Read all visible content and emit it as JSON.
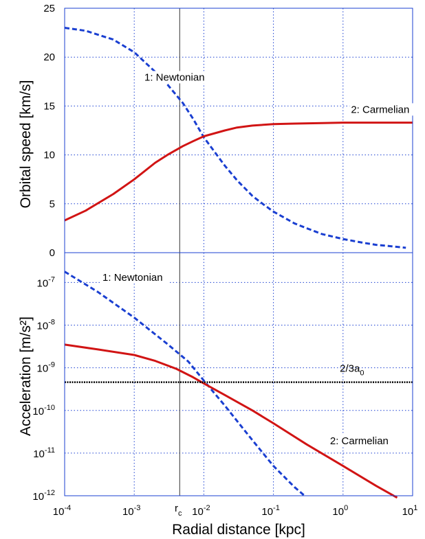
{
  "chart_data": [
    {
      "type": "line",
      "ylabel": "Orbital speed [km/s]",
      "xscale": "log",
      "xlim": [
        0.0001,
        10
      ],
      "ylim": [
        0,
        25
      ],
      "yticks": [
        "0",
        "5",
        "10",
        "15",
        "20",
        "25"
      ],
      "grid": true,
      "series": [
        {
          "name": "1: Newtonian",
          "style": "dashed",
          "color": "#1a3fd1",
          "x": [
            0.0001,
            0.0002,
            0.0005,
            0.001,
            0.002,
            0.003,
            0.005,
            0.007,
            0.01,
            0.02,
            0.03,
            0.05,
            0.07,
            0.1,
            0.2,
            0.3,
            0.5,
            1,
            2,
            3,
            5,
            8
          ],
          "y": [
            23,
            22.7,
            21.8,
            20.5,
            18.5,
            17.2,
            15.3,
            13.7,
            11.8,
            8.9,
            7.4,
            5.8,
            5.0,
            4.2,
            3.0,
            2.5,
            1.9,
            1.4,
            1.0,
            0.8,
            0.65,
            0.5
          ]
        },
        {
          "name": "2: Carmelian",
          "style": "solid",
          "color": "#d11414",
          "x": [
            0.0001,
            0.0002,
            0.0005,
            0.001,
            0.002,
            0.003,
            0.005,
            0.007,
            0.01,
            0.02,
            0.03,
            0.05,
            0.1,
            0.2,
            0.5,
            1,
            2,
            5,
            10
          ],
          "y": [
            3.3,
            4.3,
            6.0,
            7.5,
            9.2,
            10.0,
            10.9,
            11.4,
            11.9,
            12.5,
            12.8,
            13.0,
            13.15,
            13.2,
            13.25,
            13.3,
            13.3,
            13.3,
            13.3
          ]
        }
      ],
      "annotations": [
        {
          "text": "1: Newtonian",
          "x": 0.0014,
          "y": 17.6
        },
        {
          "text": "2: Carmelian",
          "x": 1.3,
          "y": 14.3
        }
      ]
    },
    {
      "type": "line",
      "xlabel": "Radial distance [kpc]",
      "ylabel": "Acceleration [m/s²]",
      "xscale": "log",
      "yscale": "log",
      "xlim": [
        0.0001,
        10
      ],
      "ylim": [
        1e-12,
        5e-07
      ],
      "xticks": [
        {
          "base": "10",
          "exp": "-4"
        },
        {
          "base": "10",
          "exp": "-3"
        },
        {
          "base": "10",
          "exp": "-2"
        },
        {
          "base": "10",
          "exp": "-1"
        },
        {
          "base": "10",
          "exp": "0"
        },
        {
          "base": "10",
          "exp": "1"
        }
      ],
      "yticks": [
        {
          "base": "10",
          "exp": "-12"
        },
        {
          "base": "10",
          "exp": "-11"
        },
        {
          "base": "10",
          "exp": "-10"
        },
        {
          "base": "10",
          "exp": "-9"
        },
        {
          "base": "10",
          "exp": "-8"
        },
        {
          "base": "10",
          "exp": "-7"
        }
      ],
      "rc_marker": {
        "label": "r",
        "sub": "c",
        "x": 0.0045
      },
      "grid": true,
      "series": [
        {
          "name": "1: Newtonian",
          "style": "dashed",
          "color": "#1a3fd1",
          "x": [
            0.0001,
            0.0003,
            0.001,
            0.003,
            0.006,
            0.01,
            0.02,
            0.05,
            0.1,
            0.2,
            0.28
          ],
          "y": [
            1.8e-07,
            6e-08,
            1.5e-08,
            3.6e-09,
            1.4e-09,
            5e-10,
            1.3e-10,
            2e-11,
            5e-12,
            1.6e-12,
            1e-12
          ]
        },
        {
          "name": "2: Carmelian",
          "style": "solid",
          "color": "#d11414",
          "x": [
            0.0001,
            0.0003,
            0.001,
            0.002,
            0.004,
            0.007,
            0.01,
            0.02,
            0.05,
            0.1,
            0.3,
            1,
            3,
            6
          ],
          "y": [
            3.5e-09,
            2.7e-09,
            2e-09,
            1.45e-09,
            9.5e-10,
            6e-10,
            4.3e-10,
            2.3e-10,
            1e-10,
            5e-11,
            1.6e-11,
            5e-12,
            1.7e-12,
            9e-13
          ]
        },
        {
          "name": "2/3a0",
          "style": "dotted",
          "color": "#000000",
          "x": [
            0.0001,
            10
          ],
          "y": [
            4.6e-10,
            4.6e-10
          ]
        }
      ],
      "annotations": [
        {
          "text": "1: Newtonian",
          "x": 0.00035,
          "y": 1.1e-07
        },
        {
          "text": "2: Carmelian",
          "x": 0.65,
          "y": 1.6e-11
        },
        {
          "label": "2/3a",
          "sub": "0",
          "x": 0.9,
          "y": 8e-10
        }
      ]
    }
  ]
}
